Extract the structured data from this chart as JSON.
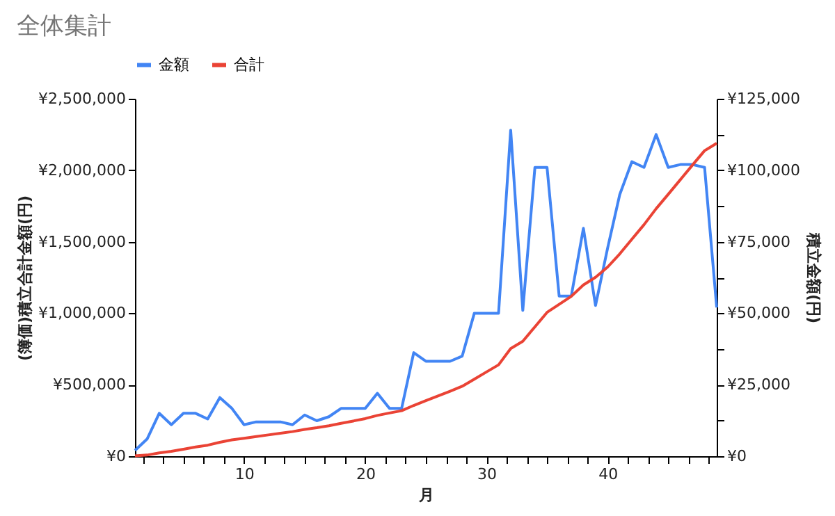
{
  "chart_data": {
    "type": "line",
    "title": "全体集計",
    "xlabel": "月",
    "ylabel": "(簿価)積立合計金額(円)",
    "y2label": "積立金額(円)",
    "x": [
      1,
      2,
      3,
      4,
      5,
      6,
      7,
      8,
      9,
      10,
      11,
      12,
      13,
      14,
      15,
      16,
      17,
      18,
      19,
      20,
      21,
      22,
      23,
      24,
      25,
      26,
      27,
      28,
      29,
      30,
      31,
      32,
      33,
      34,
      35,
      36,
      37,
      38,
      39,
      40,
      41,
      42,
      43,
      44,
      45,
      46,
      47,
      48,
      49
    ],
    "series": [
      {
        "name": "金額",
        "color": "#4285f4",
        "axis": "y2",
        "values": [
          2000,
          6000,
          15000,
          11000,
          15000,
          15000,
          13000,
          20500,
          16700,
          11000,
          12000,
          12000,
          12000,
          11000,
          14400,
          12400,
          13800,
          16700,
          16700,
          16700,
          22000,
          16700,
          16700,
          36200,
          33200,
          33200,
          33200,
          35000,
          50000,
          50000,
          50000,
          114000,
          51000,
          101000,
          101000,
          56000,
          56000,
          79700,
          52700,
          72800,
          91500,
          103000,
          101000,
          112500,
          101000,
          102000,
          102000,
          101000,
          52000
        ]
      },
      {
        "name": "合計",
        "color": "#ea4335",
        "values": [
          2000,
          8000,
          23000,
          34000,
          49000,
          64000,
          77000,
          97500,
          114000,
          125000,
          137000,
          149000,
          161000,
          172000,
          187000,
          199000,
          213000,
          230000,
          246000,
          263000,
          285000,
          302000,
          318000,
          355000,
          388000,
          421000,
          454000,
          489000,
          539000,
          589000,
          639000,
          753000,
          804000,
          905000,
          1006000,
          1062000,
          1118000,
          1198000,
          1251000,
          1323000,
          1415000,
          1518000,
          1619000,
          1731000,
          1832000,
          1934000,
          2036000,
          2137000,
          2189000
        ]
      }
    ],
    "xlim": [
      1,
      49
    ],
    "xticks": [
      {
        "value": 10,
        "label": "10"
      },
      {
        "value": 11.667,
        "label": null
      },
      {
        "value": 13.333,
        "label": null
      },
      {
        "value": 15,
        "label": null
      },
      {
        "value": 16.667,
        "label": null
      },
      {
        "value": 18.333,
        "label": null
      },
      {
        "value": 20,
        "label": "20"
      },
      {
        "value": 21.667,
        "label": null
      },
      {
        "value": 23.333,
        "label": null
      },
      {
        "value": 25,
        "label": null
      },
      {
        "value": 26.667,
        "label": null
      },
      {
        "value": 28.333,
        "label": null
      },
      {
        "value": 30,
        "label": "30"
      },
      {
        "value": 31.667,
        "label": null
      },
      {
        "value": 33.333,
        "label": null
      },
      {
        "value": 35,
        "label": null
      },
      {
        "value": 36.667,
        "label": null
      },
      {
        "value": 38.333,
        "label": null
      },
      {
        "value": 40,
        "label": "40"
      },
      {
        "value": 41.667,
        "label": null
      },
      {
        "value": 43.333,
        "label": null
      },
      {
        "value": 45,
        "label": null
      },
      {
        "value": 46.667,
        "label": null
      },
      {
        "value": 48.333,
        "label": null
      },
      {
        "value": 1.667,
        "label": null
      },
      {
        "value": 3.333,
        "label": null
      },
      {
        "value": 5,
        "label": null
      },
      {
        "value": 6.667,
        "label": null
      },
      {
        "value": 8.333,
        "label": null
      }
    ],
    "ylim": [
      0,
      2500000
    ],
    "yticks": [
      {
        "value": 0,
        "label": "¥0"
      },
      {
        "value": 500000,
        "label": "¥500,000"
      },
      {
        "value": 1000000,
        "label": "¥1,000,000"
      },
      {
        "value": 1500000,
        "label": "¥1,500,000"
      },
      {
        "value": 2000000,
        "label": "¥2,000,000"
      },
      {
        "value": 2500000,
        "label": "¥2,500,000"
      }
    ],
    "y2lim": [
      0,
      125000
    ],
    "y2ticks": [
      {
        "value": 0,
        "label": "¥0"
      },
      {
        "value": 12500,
        "label": null
      },
      {
        "value": 25000,
        "label": "¥25,000"
      },
      {
        "value": 37500,
        "label": null
      },
      {
        "value": 50000,
        "label": "¥50,000"
      },
      {
        "value": 62500,
        "label": null
      },
      {
        "value": 75000,
        "label": "¥75,000"
      },
      {
        "value": 87500,
        "label": null
      },
      {
        "value": 100000,
        "label": "¥100,000"
      },
      {
        "value": 112500,
        "label": null
      },
      {
        "value": 125000,
        "label": "¥125,000"
      }
    ],
    "legend": "top",
    "grid": false,
    "line_style": "solid"
  }
}
